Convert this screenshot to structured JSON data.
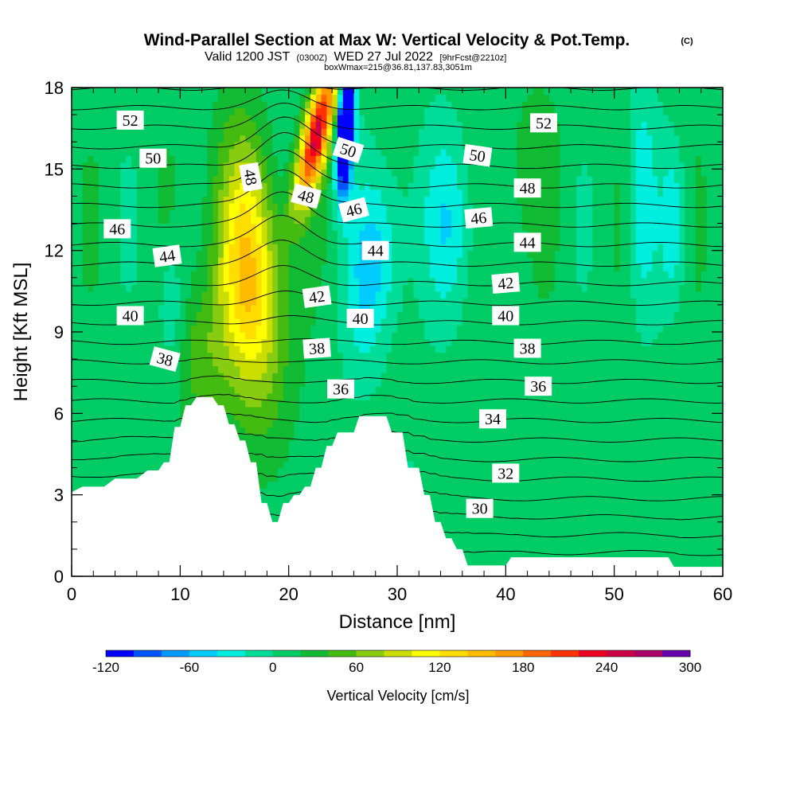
{
  "header": {
    "title": "Wind-Parallel Section at Max W: Vertical Velocity & Pot.Temp.",
    "title_mark": "(C)",
    "valid_prefix": "Valid 1200 JST",
    "valid_z": "(0300Z)",
    "valid_date": "WED 27 Jul 2022",
    "valid_fcst": "[9hrFcst@2210z]",
    "box_info": "boxWmax=215@36.81,137.83,3051m"
  },
  "chart_data": {
    "type": "heatmap",
    "xlabel": "Distance [nm]",
    "ylabel": "Height [Kft MSL]",
    "xlim": [
      0,
      60
    ],
    "ylim": [
      0,
      18
    ],
    "x_ticks": [
      "0",
      "10",
      "20",
      "30",
      "40",
      "50",
      "60"
    ],
    "y_ticks": [
      "0",
      "3",
      "6",
      "9",
      "12",
      "15",
      "18"
    ],
    "colorbar": {
      "label": "Vertical Velocity [cm/s]",
      "tick_labels": [
        "-120",
        "-60",
        "0",
        "60",
        "120",
        "180",
        "240",
        "300"
      ],
      "min": -120,
      "max": 300,
      "step": 20,
      "colors": [
        "#0000ff",
        "#0055ff",
        "#0099ff",
        "#00ccff",
        "#00eedd",
        "#00dd99",
        "#00cc66",
        "#11bb33",
        "#44bb11",
        "#88cc11",
        "#ccdd00",
        "#ffff00",
        "#ffdd00",
        "#ffbb00",
        "#ff9900",
        "#ff6600",
        "#ff3300",
        "#ee0022",
        "#cc0044",
        "#aa0066",
        "#6600aa"
      ]
    },
    "terrain_kft": [
      [
        0,
        3.1
      ],
      [
        1,
        3.3
      ],
      [
        3,
        3.3
      ],
      [
        4,
        3.6
      ],
      [
        6,
        3.6
      ],
      [
        7,
        3.9
      ],
      [
        8,
        3.9
      ],
      [
        8.5,
        4.2
      ],
      [
        9,
        4.2
      ],
      [
        9.5,
        5.5
      ],
      [
        10,
        5.5
      ],
      [
        10.5,
        6.3
      ],
      [
        11,
        6.3
      ],
      [
        11.5,
        6.6
      ],
      [
        13,
        6.6
      ],
      [
        13.5,
        6.3
      ],
      [
        14,
        6.3
      ],
      [
        14.5,
        5.6
      ],
      [
        15,
        5.6
      ],
      [
        15.5,
        5.0
      ],
      [
        16,
        5.0
      ],
      [
        16.5,
        4.2
      ],
      [
        17,
        4.2
      ],
      [
        17.5,
        2.7
      ],
      [
        18,
        2.7
      ],
      [
        18.5,
        2.0
      ],
      [
        19,
        2.0
      ],
      [
        19.5,
        2.7
      ],
      [
        20,
        2.7
      ],
      [
        20.5,
        3.0
      ],
      [
        21,
        3.0
      ],
      [
        21.5,
        3.3
      ],
      [
        22,
        3.3
      ],
      [
        22.5,
        4.0
      ],
      [
        23,
        4.0
      ],
      [
        23.5,
        4.8
      ],
      [
        24,
        4.8
      ],
      [
        24.5,
        5.3
      ],
      [
        26,
        5.3
      ],
      [
        26.5,
        5.9
      ],
      [
        29,
        5.9
      ],
      [
        29.5,
        5.3
      ],
      [
        30.5,
        5.3
      ],
      [
        31,
        4.0
      ],
      [
        32,
        4.0
      ],
      [
        32.5,
        3.0
      ],
      [
        33,
        3.0
      ],
      [
        33.5,
        2.0
      ],
      [
        34,
        2.0
      ],
      [
        34.5,
        1.4
      ],
      [
        35,
        1.4
      ],
      [
        35.5,
        1.0
      ],
      [
        36,
        1.0
      ],
      [
        36.5,
        0.4
      ],
      [
        40,
        0.4
      ],
      [
        40.5,
        0.7
      ],
      [
        55,
        0.7
      ],
      [
        55.5,
        0.35
      ],
      [
        60,
        0.35
      ]
    ],
    "theta_contour_labels": [
      {
        "text": "52",
        "x": 5.4,
        "y": 16.8,
        "rot": 0
      },
      {
        "text": "50",
        "x": 7.5,
        "y": 15.4,
        "rot": 0
      },
      {
        "text": "46",
        "x": 4.2,
        "y": 12.8,
        "rot": 0
      },
      {
        "text": "44",
        "x": 8.8,
        "y": 11.8,
        "rot": -8
      },
      {
        "text": "40",
        "x": 5.4,
        "y": 9.6,
        "rot": 0
      },
      {
        "text": "38",
        "x": 8.6,
        "y": 8.0,
        "rot": 15
      },
      {
        "text": "48",
        "x": 16.5,
        "y": 14.7,
        "rot": 80
      },
      {
        "text": "48",
        "x": 21.6,
        "y": 14.0,
        "rot": 15
      },
      {
        "text": "50",
        "x": 25.5,
        "y": 15.7,
        "rot": 18
      },
      {
        "text": "46",
        "x": 26.0,
        "y": 13.5,
        "rot": -15
      },
      {
        "text": "44",
        "x": 28.0,
        "y": 12.0,
        "rot": 0
      },
      {
        "text": "42",
        "x": 22.6,
        "y": 10.3,
        "rot": -8
      },
      {
        "text": "40",
        "x": 26.6,
        "y": 9.5,
        "rot": 0
      },
      {
        "text": "38",
        "x": 22.6,
        "y": 8.4,
        "rot": -4
      },
      {
        "text": "36",
        "x": 24.8,
        "y": 6.9,
        "rot": 0
      },
      {
        "text": "52",
        "x": 43.5,
        "y": 16.7,
        "rot": 0
      },
      {
        "text": "50",
        "x": 37.4,
        "y": 15.5,
        "rot": 8
      },
      {
        "text": "48",
        "x": 42.0,
        "y": 14.3,
        "rot": 0
      },
      {
        "text": "46",
        "x": 37.5,
        "y": 13.2,
        "rot": -5
      },
      {
        "text": "44",
        "x": 42.0,
        "y": 12.3,
        "rot": 0
      },
      {
        "text": "42",
        "x": 40.0,
        "y": 10.8,
        "rot": -5
      },
      {
        "text": "40",
        "x": 40.0,
        "y": 9.6,
        "rot": 0
      },
      {
        "text": "38",
        "x": 42.0,
        "y": 8.4,
        "rot": 0
      },
      {
        "text": "36",
        "x": 43.0,
        "y": 7.0,
        "rot": 0
      },
      {
        "text": "34",
        "x": 38.8,
        "y": 5.8,
        "rot": 0
      },
      {
        "text": "32",
        "x": 40.0,
        "y": 3.8,
        "rot": 0
      },
      {
        "text": "30",
        "x": 37.6,
        "y": 2.5,
        "rot": 0
      }
    ]
  }
}
